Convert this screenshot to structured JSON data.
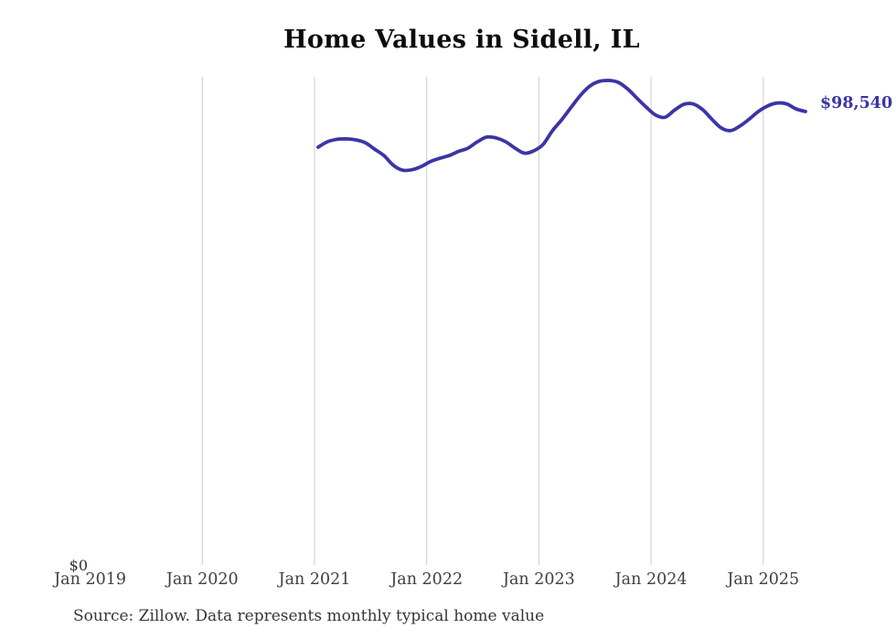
{
  "title": "Home Values in Sidell, IL",
  "source_note": "Source: Zillow. Data represents monthly typical home value",
  "end_label": "$98,540",
  "y_axis": {
    "zero_label": "$0"
  },
  "x_axis": {
    "labels": [
      "Jan 2019",
      "Jan 2020",
      "Jan 2021",
      "Jan 2022",
      "Jan 2023",
      "Jan 2024",
      "Jan 2025"
    ]
  },
  "colors": {
    "line": "#3c35a3",
    "end_label": "#3c35a3",
    "gridline": "#cccccc",
    "axis_label": "#3f3f3f",
    "title": "#0d0d0d",
    "background": "#ffffff"
  },
  "chart_data": {
    "type": "line",
    "title": "Home Values in Sidell, IL",
    "xlabel": "",
    "ylabel": "",
    "unit": "USD",
    "frequency": "monthly",
    "ylim": [
      0,
      106100
    ],
    "grid": "vertical-gridlines-at-january-2020-through-2025",
    "legend_position": "none",
    "x_tick_labels": [
      "Jan 2019",
      "Jan 2020",
      "Jan 2021",
      "Jan 2022",
      "Jan 2023",
      "Jan 2024",
      "Jan 2025"
    ],
    "annotations": [
      {
        "text": "$98,540",
        "attached_to": "last-point"
      },
      {
        "text": "$0",
        "attached_to": "y-axis-zero"
      }
    ],
    "x": [
      "2021-01",
      "2021-02",
      "2021-03",
      "2021-04",
      "2021-05",
      "2021-06",
      "2021-07",
      "2021-08",
      "2021-09",
      "2021-10",
      "2021-11",
      "2021-12",
      "2022-01",
      "2022-02",
      "2022-03",
      "2022-04",
      "2022-05",
      "2022-06",
      "2022-07",
      "2022-08",
      "2022-09",
      "2022-10",
      "2022-11",
      "2022-12",
      "2023-01",
      "2023-02",
      "2023-03",
      "2023-04",
      "2023-05",
      "2023-06",
      "2023-07",
      "2023-08",
      "2023-09",
      "2023-10",
      "2023-11",
      "2023-12",
      "2024-01",
      "2024-02",
      "2024-03",
      "2024-04",
      "2024-05",
      "2024-06",
      "2024-07",
      "2024-08",
      "2024-09",
      "2024-10",
      "2024-11",
      "2024-12",
      "2025-01",
      "2025-02",
      "2025-03",
      "2025-04",
      "2025-05"
    ],
    "series": [
      {
        "name": "Monthly typical home value",
        "values": [
          90800,
          92000,
          92500,
          92600,
          92400,
          91800,
          90400,
          89000,
          86900,
          85800,
          85900,
          86600,
          87700,
          88400,
          89000,
          89900,
          90600,
          92000,
          93000,
          92800,
          92000,
          90600,
          89500,
          90000,
          91400,
          94400,
          96800,
          99500,
          102100,
          104100,
          105100,
          105300,
          104900,
          103500,
          101500,
          99500,
          97800,
          97300,
          98800,
          100100,
          100200,
          99000,
          96900,
          95000,
          94400,
          95400,
          96900,
          98600,
          99800,
          100400,
          100200,
          99100,
          98540
        ]
      }
    ]
  }
}
